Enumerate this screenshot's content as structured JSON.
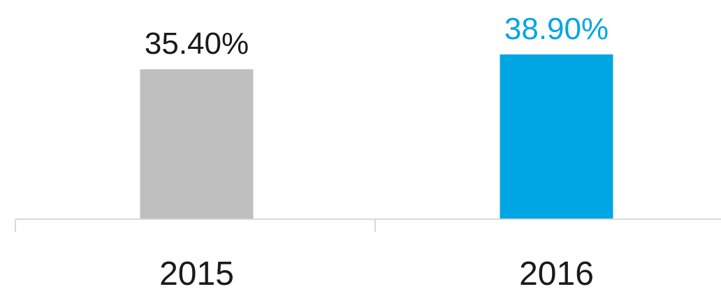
{
  "chart_data": {
    "type": "bar",
    "categories": [
      "2015",
      "2016"
    ],
    "values": [
      35.4,
      38.9
    ],
    "value_labels": [
      "35.40%",
      "38.90%"
    ],
    "bar_colors": [
      "#bfbfbf",
      "#00a6e2"
    ],
    "label_colors": [
      "#1a1a1a",
      "#00a6e2"
    ],
    "axis_color": "#d9d9d9",
    "title": "",
    "xlabel": "",
    "ylabel": "",
    "grid": false,
    "legend": "none"
  }
}
